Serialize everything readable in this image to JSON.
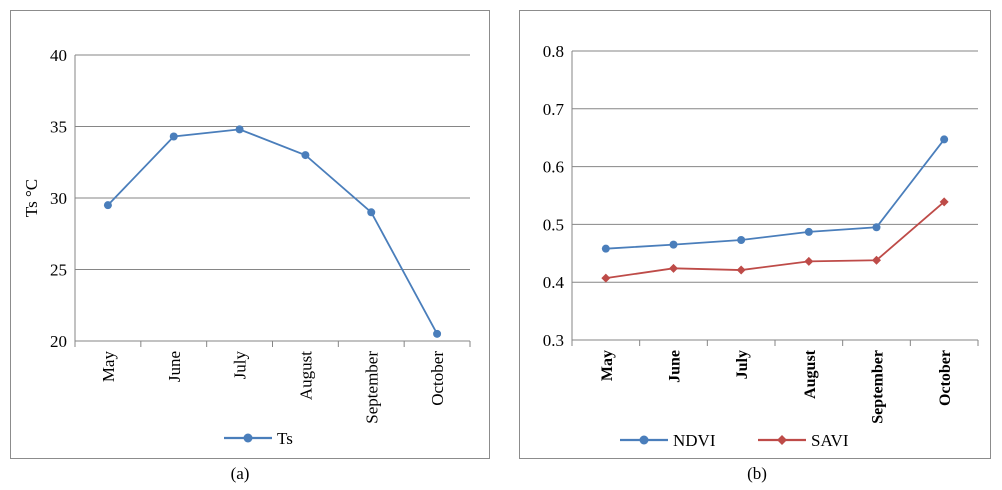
{
  "captions": [
    "(a)",
    "(b)"
  ],
  "chart_data": [
    {
      "type": "line",
      "title": "",
      "xlabel": "",
      "ylabel": "Ts °C",
      "ylim": [
        20,
        40
      ],
      "yticks": [
        20,
        25,
        30,
        35,
        40
      ],
      "grid": true,
      "legend_position": "bottom",
      "categories": [
        "May",
        "June",
        "July",
        "August",
        "September",
        "October"
      ],
      "series": [
        {
          "name": "Ts",
          "color": "#4a7ebb",
          "marker": "circle",
          "values": [
            29.5,
            34.3,
            34.8,
            33.0,
            29.0,
            20.5
          ]
        }
      ]
    },
    {
      "type": "line",
      "title": "",
      "xlabel": "",
      "ylabel": "",
      "ylim": [
        0.3,
        0.8
      ],
      "yticks": [
        0.3,
        0.4,
        0.5,
        0.6,
        0.7,
        0.8
      ],
      "grid": true,
      "legend_position": "bottom",
      "categories": [
        "May",
        "June",
        "July",
        "August",
        "September",
        "October"
      ],
      "series": [
        {
          "name": "NDVI",
          "color": "#4a7ebb",
          "marker": "circle",
          "values": [
            0.458,
            0.465,
            0.473,
            0.487,
            0.495,
            0.647
          ]
        },
        {
          "name": "SAVI",
          "color": "#be4b48",
          "marker": "diamond",
          "values": [
            0.407,
            0.424,
            0.421,
            0.436,
            0.438,
            0.539
          ]
        }
      ]
    }
  ]
}
